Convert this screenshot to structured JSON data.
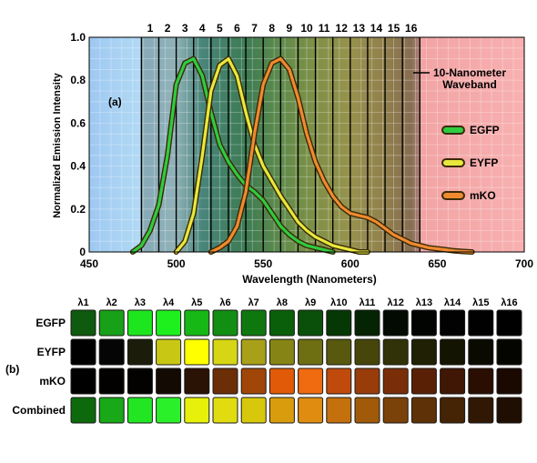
{
  "chart_data": [
    {
      "type": "line",
      "panel_label": "(a)",
      "xlabel": "Wavelength (Nanometers)",
      "ylabel": "Normalized Emission Intensity",
      "xlim": [
        450,
        700
      ],
      "ylim": [
        0,
        1.0
      ],
      "x_ticks": [
        "450",
        "500",
        "550",
        "600",
        "650",
        "700"
      ],
      "y_ticks": [
        "0",
        "0.2",
        "0.4",
        "0.6",
        "0.8",
        "1.0"
      ],
      "grid": true,
      "waveband_annotation": "10-Nanometer Waveband",
      "waveband_labels": [
        "1",
        "2",
        "3",
        "4",
        "5",
        "6",
        "7",
        "8",
        "9",
        "10",
        "11",
        "12",
        "13",
        "14",
        "15",
        "16"
      ],
      "waveband_range": [
        480,
        640
      ],
      "legend_position": "right",
      "series": [
        {
          "name": "EGFP",
          "color": "#2ecc40",
          "x": [
            475,
            480,
            485,
            490,
            495,
            500,
            505,
            510,
            515,
            520,
            525,
            530,
            535,
            540,
            545,
            550,
            555,
            560,
            565,
            570,
            575,
            580,
            585,
            590
          ],
          "values": [
            0.0,
            0.03,
            0.1,
            0.22,
            0.45,
            0.78,
            0.88,
            0.9,
            0.82,
            0.65,
            0.5,
            0.42,
            0.36,
            0.31,
            0.28,
            0.24,
            0.18,
            0.12,
            0.08,
            0.05,
            0.03,
            0.02,
            0.01,
            0.0
          ]
        },
        {
          "name": "EYFP",
          "color": "#e8e83c",
          "x": [
            500,
            505,
            510,
            515,
            520,
            525,
            530,
            535,
            540,
            545,
            550,
            555,
            560,
            565,
            570,
            575,
            580,
            585,
            590,
            595,
            600,
            605,
            610
          ],
          "values": [
            0.0,
            0.05,
            0.18,
            0.45,
            0.75,
            0.87,
            0.9,
            0.82,
            0.65,
            0.5,
            0.4,
            0.33,
            0.26,
            0.2,
            0.14,
            0.1,
            0.07,
            0.05,
            0.03,
            0.02,
            0.01,
            0.0,
            0.0
          ]
        },
        {
          "name": "mKO",
          "color": "#f08a30",
          "x": [
            520,
            525,
            530,
            535,
            540,
            545,
            550,
            555,
            560,
            565,
            570,
            575,
            580,
            585,
            590,
            595,
            600,
            605,
            610,
            615,
            620,
            625,
            630,
            635,
            640,
            645,
            650,
            655,
            660,
            665,
            670
          ],
          "values": [
            0.0,
            0.02,
            0.05,
            0.12,
            0.28,
            0.55,
            0.78,
            0.88,
            0.9,
            0.85,
            0.72,
            0.55,
            0.42,
            0.33,
            0.26,
            0.21,
            0.18,
            0.17,
            0.16,
            0.14,
            0.11,
            0.08,
            0.06,
            0.04,
            0.03,
            0.02,
            0.015,
            0.01,
            0.005,
            0.002,
            0.0
          ]
        }
      ]
    },
    {
      "type": "heatmap",
      "panel_label": "(b)",
      "columns": [
        "λ1",
        "λ2",
        "λ3",
        "λ4",
        "λ5",
        "λ6",
        "λ7",
        "λ8",
        "λ9",
        "λ10",
        "λ11",
        "λ12",
        "λ13",
        "λ14",
        "λ15",
        "λ16"
      ],
      "rows": [
        {
          "name": "EGFP",
          "colors": [
            "#0e5a0e",
            "#18a018",
            "#1ee61e",
            "#1ef01e",
            "#16b816",
            "#128e12",
            "#0e780e",
            "#0a600a",
            "#0a500a",
            "#063806",
            "#042404",
            "#020a02",
            "#020402",
            "#010201",
            "#010101",
            "#000000"
          ]
        },
        {
          "name": "EYFP",
          "colors": [
            "#000000",
            "#050505",
            "#1c1c0a",
            "#c8c814",
            "#ffff00",
            "#d6d614",
            "#a8a018",
            "#868414",
            "#6e6e12",
            "#58580e",
            "#46460a",
            "#323208",
            "#202004",
            "#141402",
            "#0a0a01",
            "#050500"
          ]
        },
        {
          "name": "mKO",
          "colors": [
            "#000000",
            "#020100",
            "#040200",
            "#140a04",
            "#2a1204",
            "#6c2e06",
            "#a04608",
            "#e05a08",
            "#f06a10",
            "#c04a0c",
            "#983c0a",
            "#7a2e08",
            "#5a2006",
            "#401604",
            "#2a0e02",
            "#1a0801"
          ]
        },
        {
          "name": "Combined",
          "colors": [
            "#0c6a0c",
            "#18a818",
            "#22e622",
            "#2af02a",
            "#e6f00a",
            "#e0dc10",
            "#d8c80c",
            "#d89c0c",
            "#e08c10",
            "#c4700c",
            "#a05a0a",
            "#7a4208",
            "#5e3206",
            "#442404",
            "#301804",
            "#200e02"
          ]
        }
      ]
    }
  ]
}
